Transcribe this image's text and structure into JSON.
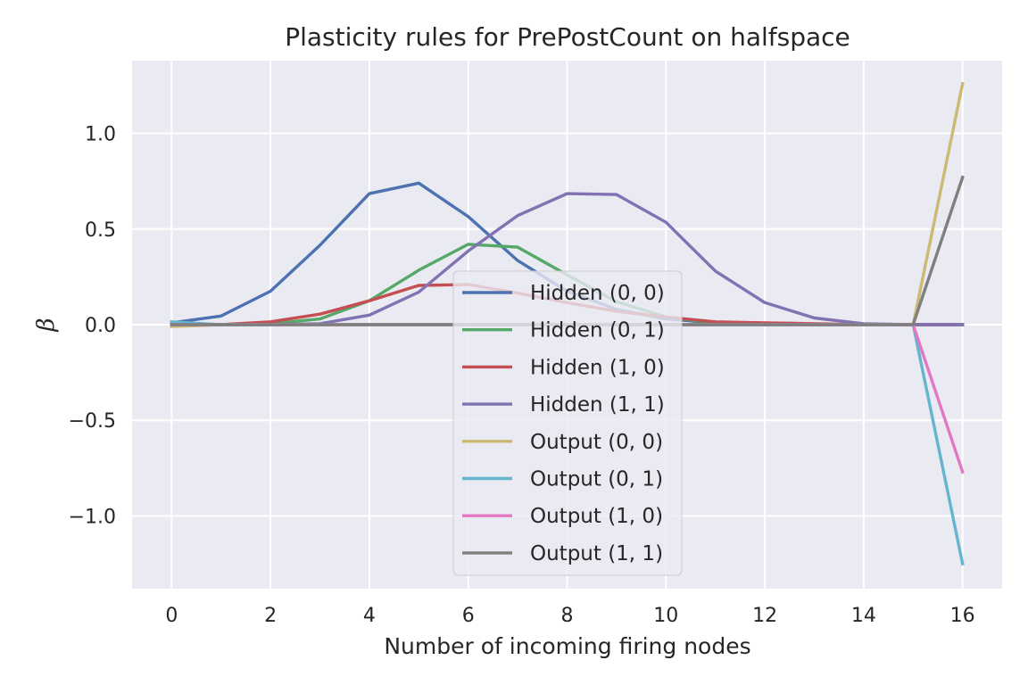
{
  "chart_data": {
    "type": "line",
    "title": "Plasticity rules for PrePostCount on halfspace",
    "xlabel": "Number of incoming firing nodes",
    "ylabel": "β",
    "x": [
      0,
      1,
      2,
      3,
      4,
      5,
      6,
      7,
      8,
      9,
      10,
      11,
      12,
      13,
      14,
      15,
      16
    ],
    "xlim": [
      -0.8,
      16.8
    ],
    "ylim": [
      -1.38,
      1.38
    ],
    "xticks": [
      "0",
      "2",
      "4",
      "6",
      "8",
      "10",
      "12",
      "14",
      "16"
    ],
    "yticks": [
      "−1.0",
      "−0.5",
      "0.0",
      "0.5",
      "1.0"
    ],
    "grid": true,
    "legend_position": "lower center",
    "series": [
      {
        "name": "Hidden (0, 0)",
        "color": "#4c72b0",
        "values": [
          0.01,
          0.045,
          0.175,
          0.415,
          0.685,
          0.74,
          0.565,
          0.335,
          0.175,
          0.08,
          0.03,
          0.01,
          0.005,
          0.0,
          0.0,
          0.0,
          0.0
        ]
      },
      {
        "name": "Hidden (0, 1)",
        "color": "#55a868",
        "values": [
          0.0,
          0.0,
          0.005,
          0.03,
          0.125,
          0.285,
          0.42,
          0.405,
          0.26,
          0.12,
          0.04,
          0.01,
          0.005,
          0.0,
          0.0,
          0.0,
          0.0
        ]
      },
      {
        "name": "Hidden (1, 0)",
        "color": "#c44e52",
        "values": [
          0.0,
          0.0,
          0.015,
          0.055,
          0.125,
          0.205,
          0.21,
          0.165,
          0.115,
          0.07,
          0.04,
          0.015,
          0.01,
          0.005,
          0.0,
          0.0,
          0.0
        ]
      },
      {
        "name": "Hidden (1, 1)",
        "color": "#8172b2",
        "values": [
          0.0,
          0.0,
          0.0,
          0.005,
          0.05,
          0.17,
          0.385,
          0.57,
          0.685,
          0.68,
          0.535,
          0.28,
          0.115,
          0.035,
          0.005,
          0.0,
          0.0
        ]
      },
      {
        "name": "Output (0, 0)",
        "color": "#ccb974",
        "values": [
          -0.01,
          0.0,
          0.0,
          0.0,
          0.0,
          0.0,
          0.0,
          0.0,
          0.0,
          0.0,
          0.0,
          0.0,
          0.0,
          0.0,
          0.0,
          0.0,
          1.26
        ]
      },
      {
        "name": "Output (0, 1)",
        "color": "#64b5cd",
        "values": [
          0.015,
          0.0,
          0.0,
          0.0,
          0.0,
          0.0,
          0.0,
          0.0,
          0.0,
          0.0,
          0.0,
          0.0,
          0.0,
          0.0,
          0.0,
          0.0,
          -1.25
        ]
      },
      {
        "name": "Output (1, 0)",
        "color": "#e377c2",
        "values": [
          0.0,
          0.0,
          0.0,
          0.0,
          0.0,
          0.0,
          0.0,
          0.0,
          0.0,
          0.0,
          0.0,
          0.0,
          0.0,
          0.0,
          0.0,
          0.0,
          -0.77
        ]
      },
      {
        "name": "Output (1, 1)",
        "color": "#7f7f7f",
        "values": [
          0.0,
          0.0,
          0.0,
          0.0,
          0.0,
          0.0,
          0.0,
          0.0,
          0.0,
          0.0,
          0.0,
          0.0,
          0.0,
          0.0,
          0.0,
          0.0,
          0.77
        ]
      }
    ]
  }
}
